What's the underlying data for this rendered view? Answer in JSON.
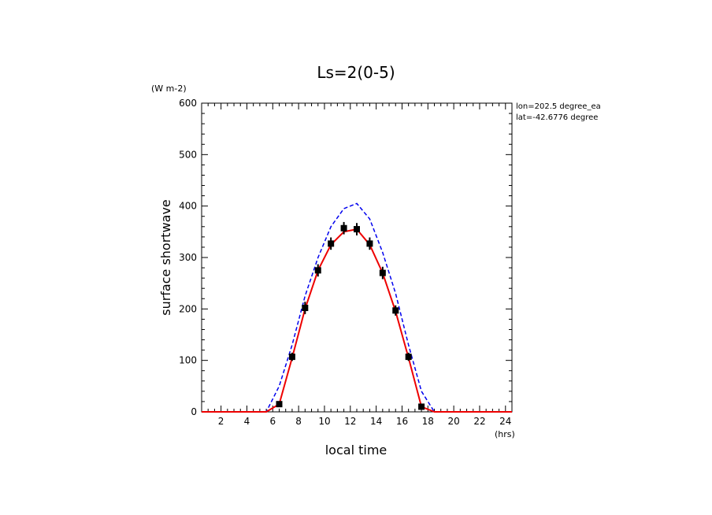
{
  "chart_data": {
    "type": "line",
    "title": "Ls=2(0-5)",
    "xlabel": "local time",
    "ylabel": "surface shortwave",
    "xunit": "(hrs)",
    "yunit": "(W m-2)",
    "xlim": [
      0.5,
      24.5
    ],
    "ylim": [
      0,
      600
    ],
    "xticks": [
      2,
      4,
      6,
      8,
      10,
      12,
      14,
      16,
      18,
      20,
      22,
      24
    ],
    "yticks": [
      0,
      100,
      200,
      300,
      400,
      500,
      600
    ],
    "info_lines": [
      "lon=202.5 degree_ea",
      "lat=-42.6776 degree"
    ],
    "grid": false,
    "series": [
      {
        "style": "dashed",
        "color": "#0000ee",
        "x": [
          0.5,
          1.5,
          2.5,
          3.5,
          4.5,
          5.5,
          6.5,
          7.5,
          8.5,
          9.5,
          10.5,
          11.5,
          12.5,
          13.5,
          14.5,
          15.5,
          16.5,
          17.5,
          18.5,
          19.5,
          20.5,
          21.5,
          22.5,
          23.5,
          24.5
        ],
        "y": [
          0,
          0,
          0,
          0,
          0,
          0,
          50,
          130,
          225,
          300,
          360,
          395,
          405,
          375,
          310,
          230,
          130,
          40,
          0,
          0,
          0,
          0,
          0,
          0,
          0
        ]
      },
      {
        "style": "solid",
        "color": "#ee0000",
        "x": [
          0.5,
          1.5,
          2.5,
          3.5,
          4.5,
          5.5,
          6.5,
          7.5,
          8.5,
          9.5,
          10.5,
          11.5,
          12.5,
          13.5,
          14.5,
          15.5,
          16.5,
          17.5,
          18.5,
          19.5,
          20.5,
          21.5,
          22.5,
          23.5,
          24.5
        ],
        "y": [
          0,
          0,
          0,
          0,
          0,
          0,
          15,
          105,
          200,
          275,
          325,
          350,
          355,
          325,
          270,
          195,
          105,
          10,
          0,
          0,
          0,
          0,
          0,
          0,
          0
        ]
      },
      {
        "style": "markers",
        "color": "#000000",
        "x": [
          6.5,
          7.5,
          8.5,
          9.5,
          10.5,
          11.5,
          12.5,
          13.5,
          14.5,
          15.5,
          16.5,
          17.5
        ],
        "y": [
          15,
          107,
          202,
          275,
          327,
          357,
          355,
          327,
          270,
          197,
          107,
          10
        ],
        "err": [
          5,
          8,
          12,
          12,
          12,
          12,
          12,
          12,
          12,
          10,
          8,
          4
        ]
      }
    ]
  }
}
